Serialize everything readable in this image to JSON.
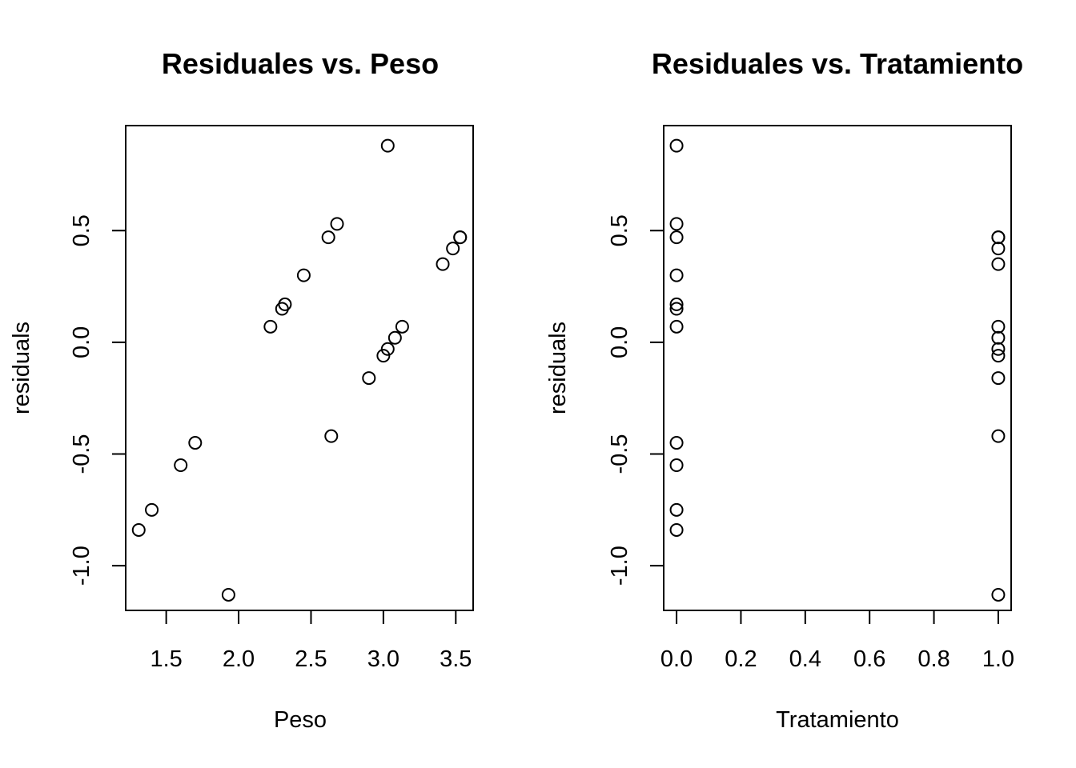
{
  "chart_data": [
    {
      "type": "scatter",
      "title": "Residuales vs. Peso",
      "xlabel": "Peso",
      "ylabel": "residuals",
      "xlim": [
        1.22,
        3.62
      ],
      "ylim": [
        -1.2,
        0.97
      ],
      "xticks": [
        1.5,
        2.0,
        2.5,
        3.0,
        3.5
      ],
      "xtick_labels": [
        "1.5",
        "2.0",
        "2.5",
        "3.0",
        "3.5"
      ],
      "yticks": [
        -1.0,
        -0.5,
        0.0,
        0.5
      ],
      "ytick_labels": [
        "-1.0",
        "-0.5",
        "0.0",
        "0.5"
      ],
      "x": [
        1.31,
        1.4,
        1.6,
        1.7,
        1.93,
        2.22,
        2.3,
        2.32,
        2.45,
        2.62,
        2.64,
        2.68,
        2.9,
        3.0,
        3.03,
        3.03,
        3.08,
        3.13,
        3.41,
        3.48,
        3.53,
        3.53
      ],
      "y": [
        -0.84,
        -0.75,
        -0.55,
        -0.45,
        -1.13,
        0.07,
        0.15,
        0.17,
        0.3,
        0.47,
        -0.42,
        0.53,
        -0.16,
        -0.06,
        -0.03,
        0.88,
        0.02,
        0.07,
        0.35,
        0.42,
        0.47,
        0.47
      ]
    },
    {
      "type": "scatter",
      "title": "Residuales vs. Tratamiento",
      "xlabel": "Tratamiento",
      "ylabel": "residuals",
      "xlim": [
        -0.04,
        1.04
      ],
      "ylim": [
        -1.2,
        0.97
      ],
      "xticks": [
        0.0,
        0.2,
        0.4,
        0.6,
        0.8,
        1.0
      ],
      "xtick_labels": [
        "0.0",
        "0.2",
        "0.4",
        "0.6",
        "0.8",
        "1.0"
      ],
      "yticks": [
        -1.0,
        -0.5,
        0.0,
        0.5
      ],
      "ytick_labels": [
        "-1.0",
        "-0.5",
        "0.0",
        "0.5"
      ],
      "x": [
        0,
        0,
        0,
        0,
        0,
        0,
        0,
        0,
        0,
        0,
        0,
        1,
        1,
        1,
        1,
        1,
        1,
        1,
        1,
        1,
        1,
        1
      ],
      "y": [
        0.88,
        0.53,
        0.47,
        0.3,
        0.17,
        0.15,
        0.07,
        -0.45,
        -0.55,
        -0.75,
        -0.84,
        0.47,
        0.47,
        0.42,
        0.35,
        0.07,
        0.02,
        -0.03,
        -0.06,
        -0.16,
        -0.42,
        -1.13
      ]
    }
  ]
}
